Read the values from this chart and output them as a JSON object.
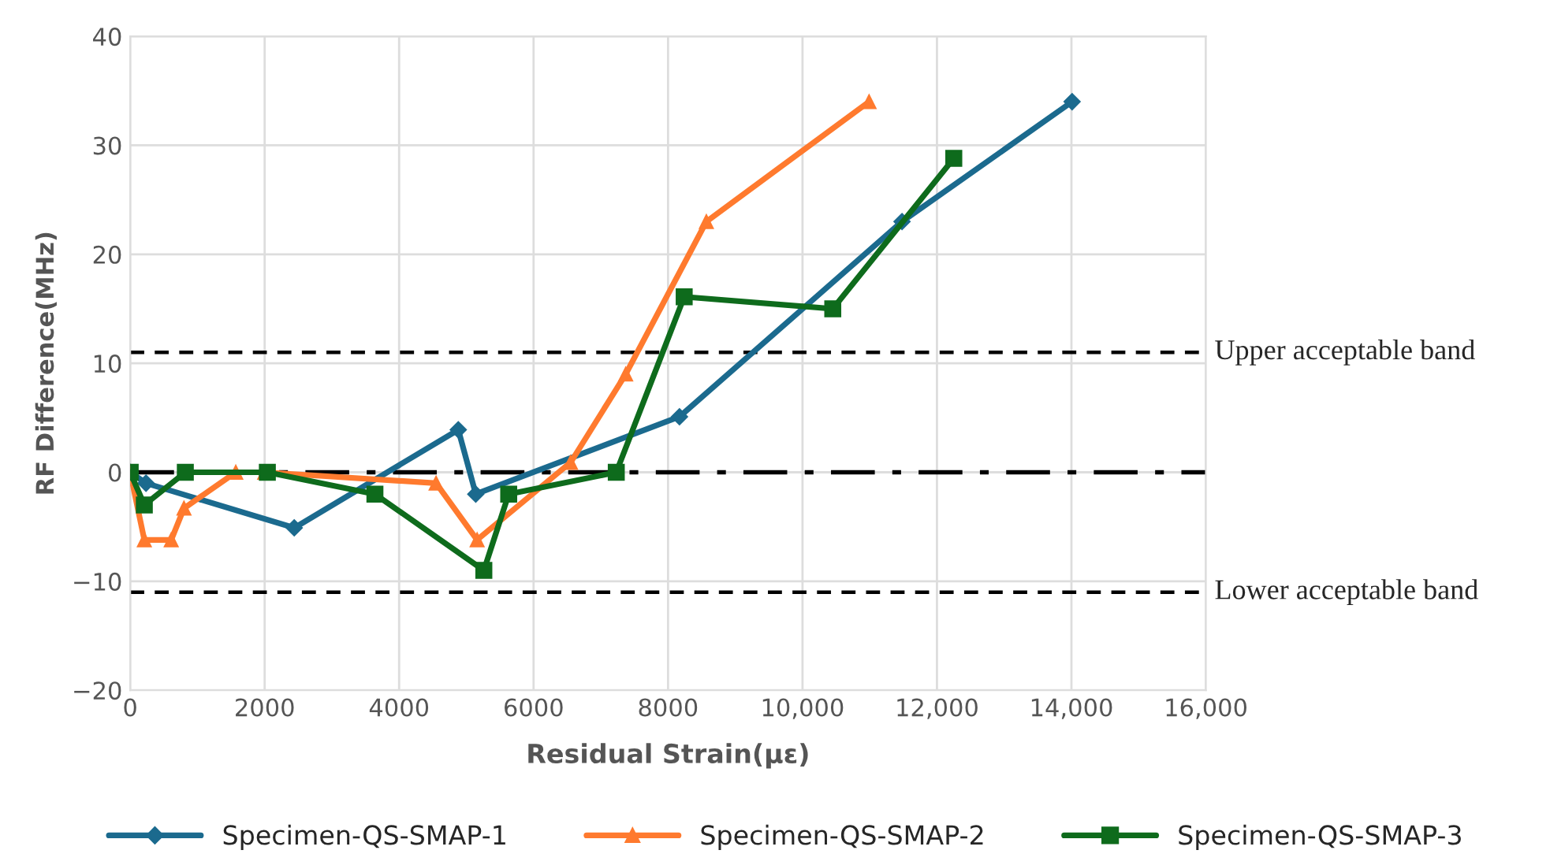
{
  "chart_data": {
    "type": "line",
    "xlabel": "Residual Strain(με)",
    "ylabel": "RF Difference(MHz)",
    "xlim": [
      0,
      16000
    ],
    "xticks": [
      {
        "value": 0,
        "label": "0"
      },
      {
        "value": 2000,
        "label": "2000"
      },
      {
        "value": 4000,
        "label": "4000"
      },
      {
        "value": 6000,
        "label": "6000"
      },
      {
        "value": 8000,
        "label": "8000"
      },
      {
        "value": 10000,
        "label": "10,000"
      },
      {
        "value": 12000,
        "label": "12,000"
      },
      {
        "value": 14000,
        "label": "14,000"
      },
      {
        "value": 16000,
        "label": "16,000"
      }
    ],
    "ylim": [
      -20,
      40
    ],
    "yticks": [
      {
        "value": -20,
        "label": "−20"
      },
      {
        "value": -10,
        "label": "−10"
      },
      0,
      10,
      20,
      30,
      40
    ],
    "grid": true,
    "legend": "bottom",
    "line_style": "solid",
    "series": [
      {
        "name": "Specimen-QS-SMAP-1",
        "color": "#1b6a8e",
        "marker": "diamond",
        "x": [
          0,
          235,
          2440,
          4880,
          5140,
          8170,
          11480,
          14010
        ],
        "values": [
          0,
          -1,
          -5.1,
          3.9,
          -2,
          5.1,
          23,
          34
        ]
      },
      {
        "name": "Specimen-QS-SMAP-2",
        "color": "#ff7a2e",
        "marker": "triangle",
        "x": [
          0,
          210,
          610,
          800,
          1570,
          2000,
          4550,
          5160,
          6550,
          7370,
          8570,
          10990
        ],
        "values": [
          0,
          -6.2,
          -6.2,
          -3.3,
          0,
          0,
          -1,
          -6.2,
          0.9,
          9,
          23,
          34
        ]
      },
      {
        "name": "Specimen-QS-SMAP-3",
        "color": "#0e6b1c",
        "marker": "square",
        "x": [
          0,
          210,
          820,
          2040,
          3640,
          5260,
          5630,
          7230,
          8240,
          10450,
          12250
        ],
        "values": [
          0,
          -3,
          0,
          0,
          -2,
          -9,
          -2,
          0,
          16.1,
          15,
          28.8
        ]
      }
    ],
    "ref_lines": [
      {
        "axis": "y",
        "value": 11,
        "label": "Upper acceptable band",
        "color": "#000000",
        "line_style": "dashed"
      },
      {
        "axis": "y",
        "value": 0,
        "label": null,
        "color": "#000000",
        "line_style": "dashdot"
      },
      {
        "axis": "y",
        "value": -11,
        "label": "Lower acceptable band",
        "color": "#000000",
        "line_style": "dashed"
      }
    ]
  }
}
